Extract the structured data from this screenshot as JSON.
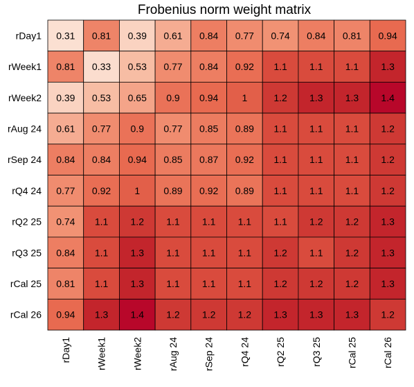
{
  "chart_data": {
    "type": "heatmap",
    "title": "Frobenius norm weight matrix",
    "row_labels": [
      "rDay1",
      "rWeek1",
      "rWeek2",
      "rAug 24",
      "rSep 24",
      "rQ4 24",
      "rQ2 25",
      "rQ3 25",
      "rCal 25",
      "rCal 26"
    ],
    "col_labels": [
      "rDay1",
      "rWeek1",
      "rWeek2",
      "rAug 24",
      "rSep 24",
      "rQ4 24",
      "rQ2 25",
      "rQ3 25",
      "rCal 25",
      "rCal 26"
    ],
    "values": [
      [
        0.31,
        0.81,
        0.39,
        0.61,
        0.84,
        0.77,
        0.74,
        0.84,
        0.81,
        0.94
      ],
      [
        0.81,
        0.33,
        0.53,
        0.77,
        0.84,
        0.92,
        1.1,
        1.1,
        1.1,
        1.3
      ],
      [
        0.39,
        0.53,
        0.65,
        0.9,
        0.94,
        1,
        1.2,
        1.3,
        1.3,
        1.4
      ],
      [
        0.61,
        0.77,
        0.9,
        0.77,
        0.85,
        0.89,
        1.1,
        1.1,
        1.1,
        1.2
      ],
      [
        0.84,
        0.84,
        0.94,
        0.85,
        0.87,
        0.92,
        1.1,
        1.1,
        1.1,
        1.2
      ],
      [
        0.77,
        0.92,
        1,
        0.89,
        0.92,
        0.89,
        1.1,
        1.1,
        1.1,
        1.2
      ],
      [
        0.74,
        1.1,
        1.2,
        1.1,
        1.1,
        1.1,
        1.1,
        1.2,
        1.2,
        1.3
      ],
      [
        0.84,
        1.1,
        1.3,
        1.1,
        1.1,
        1.1,
        1.2,
        1.1,
        1.2,
        1.3
      ],
      [
        0.81,
        1.1,
        1.3,
        1.1,
        1.1,
        1.1,
        1.2,
        1.2,
        1.2,
        1.3
      ],
      [
        0.94,
        1.3,
        1.4,
        1.2,
        1.2,
        1.2,
        1.3,
        1.3,
        1.3,
        1.2
      ]
    ],
    "value_range": [
      0.31,
      1.4
    ],
    "color_scale": {
      "name": "reds",
      "low": "#fbe0d2",
      "high": "#b8072a"
    },
    "annotations": true,
    "grid": true,
    "legend": "none"
  }
}
